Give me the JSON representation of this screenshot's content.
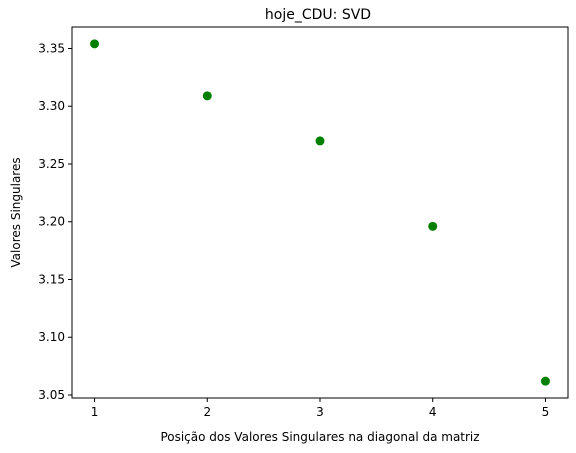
{
  "chart_data": {
    "type": "scatter",
    "title": "hoje_CDU: SVD",
    "xlabel": "Posição dos Valores Singulares na diagonal da matriz",
    "ylabel": "Valores Singulares",
    "x": [
      1,
      2,
      3,
      4,
      5
    ],
    "y": [
      3.354,
      3.309,
      3.27,
      3.196,
      3.062
    ],
    "xlim": [
      0.8,
      5.2
    ],
    "ylim": [
      3.0474,
      3.3686
    ],
    "xticks": [
      1,
      2,
      3,
      4,
      5
    ],
    "xtick_labels": [
      "1",
      "2",
      "3",
      "4",
      "5"
    ],
    "yticks": [
      3.05,
      3.1,
      3.15,
      3.2,
      3.25,
      3.3,
      3.35
    ],
    "ytick_labels": [
      "3.05",
      "3.10",
      "3.15",
      "3.20",
      "3.25",
      "3.30",
      "3.35"
    ],
    "grid": false,
    "legend": "none",
    "marker_color": "#008000"
  }
}
